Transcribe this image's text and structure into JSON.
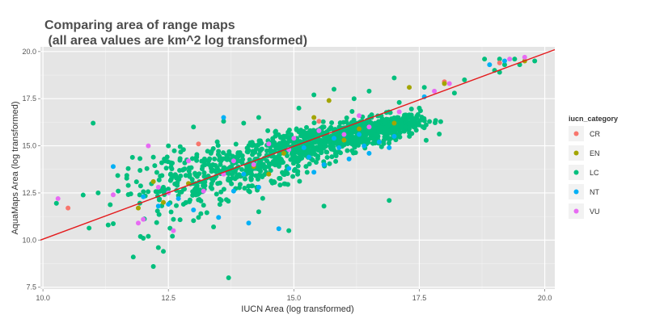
{
  "chart_data": {
    "type": "scatter",
    "title_lines": [
      "Comparing area of range maps",
      " (all area values are km^2 log transformed)"
    ],
    "xlabel": "IUCN Area (log transformed)",
    "ylabel": "AquaMaps Area (log transformed)",
    "xlim": [
      9.95,
      20.2
    ],
    "ylim": [
      7.4,
      20.25
    ],
    "xticks": [
      10.0,
      12.5,
      15.0,
      17.5,
      20.0
    ],
    "xtick_labels": [
      "10.0",
      "12.5",
      "15.0",
      "17.5",
      "20.0"
    ],
    "yticks": [
      7.5,
      10.0,
      12.5,
      15.0,
      17.5,
      20.0
    ],
    "ytick_labels": [
      "7.5",
      "10.0",
      "12.5",
      "15.0",
      "17.5",
      "20.0"
    ],
    "grid": true,
    "legend": {
      "title": "iucn_category",
      "placement": "right",
      "entries": [
        {
          "label": "CR",
          "color": "#F8766D"
        },
        {
          "label": "EN",
          "color": "#A3A500"
        },
        {
          "label": "LC",
          "color": "#00BF7D"
        },
        {
          "label": "NT",
          "color": "#00B0F6"
        },
        {
          "label": "VU",
          "color": "#E76BF3"
        }
      ]
    },
    "fit_line": {
      "color": "#e41a1c",
      "points": [
        [
          9.95,
          10.0
        ],
        [
          20.2,
          20.1
        ]
      ]
    },
    "series": [
      {
        "category": "CR",
        "color": "#F8766D",
        "points": [
          [
            10.5,
            11.7
          ],
          [
            13.1,
            15.1
          ],
          [
            18.0,
            18.4
          ],
          [
            19.1,
            19.4
          ],
          [
            15.5,
            16.3
          ]
        ]
      },
      {
        "category": "EN",
        "color": "#A3A500",
        "points": [
          [
            11.9,
            11.7
          ],
          [
            12.2,
            13.1
          ],
          [
            12.4,
            12.0
          ],
          [
            12.9,
            13.0
          ],
          [
            14.2,
            13.9
          ],
          [
            14.8,
            14.6
          ],
          [
            15.4,
            16.5
          ],
          [
            15.7,
            17.4
          ],
          [
            16.0,
            15.3
          ],
          [
            17.0,
            16.2
          ],
          [
            17.3,
            18.1
          ],
          [
            18.0,
            18.3
          ],
          [
            19.6,
            19.5
          ],
          [
            14.5,
            13.5
          ],
          [
            16.3,
            15.9
          ]
        ]
      },
      {
        "category": "NT",
        "color": "#00B0F6",
        "points": [
          [
            11.4,
            13.9
          ],
          [
            12.0,
            12.3
          ],
          [
            12.3,
            11.8
          ],
          [
            12.5,
            11.9
          ],
          [
            13.0,
            11.6
          ],
          [
            13.5,
            11.2
          ],
          [
            14.1,
            10.9
          ],
          [
            14.7,
            10.6
          ],
          [
            14.3,
            12.8
          ],
          [
            14.9,
            13.8
          ],
          [
            15.3,
            14.4
          ],
          [
            15.6,
            14.0
          ],
          [
            15.9,
            14.9
          ],
          [
            16.1,
            14.3
          ],
          [
            16.4,
            15.0
          ],
          [
            16.5,
            14.6
          ],
          [
            16.7,
            15.2
          ],
          [
            17.0,
            15.5
          ],
          [
            17.6,
            17.6
          ],
          [
            18.9,
            19.3
          ],
          [
            19.2,
            19.5
          ],
          [
            13.6,
            16.5
          ],
          [
            14.0,
            13.5
          ],
          [
            15.2,
            14.9
          ],
          [
            15.8,
            15.4
          ],
          [
            12.7,
            12.2
          ],
          [
            16.3,
            15.6
          ],
          [
            16.9,
            14.9
          ],
          [
            15.4,
            13.6
          ],
          [
            13.8,
            12.6
          ]
        ]
      },
      {
        "category": "VU",
        "color": "#E76BF3",
        "points": [
          [
            10.3,
            12.2
          ],
          [
            11.4,
            12.4
          ],
          [
            11.9,
            10.9
          ],
          [
            12.1,
            15.0
          ],
          [
            12.0,
            11.1
          ],
          [
            12.5,
            12.5
          ],
          [
            12.6,
            10.5
          ],
          [
            13.2,
            12.6
          ],
          [
            13.8,
            14.2
          ],
          [
            14.2,
            14.0
          ],
          [
            14.5,
            15.1
          ],
          [
            15.0,
            15.4
          ],
          [
            15.5,
            15.8
          ],
          [
            16.0,
            15.6
          ],
          [
            16.5,
            16.0
          ],
          [
            17.1,
            16.8
          ],
          [
            17.8,
            17.9
          ],
          [
            18.1,
            18.3
          ],
          [
            19.3,
            19.6
          ],
          [
            19.6,
            19.7
          ],
          [
            12.9,
            14.2
          ],
          [
            13.6,
            13.5
          ],
          [
            14.9,
            14.8
          ],
          [
            16.3,
            16.6
          ],
          [
            12.3,
            12.8
          ]
        ]
      }
    ],
    "lc_clouds": [
      {
        "cx": 16.4,
        "cy": 15.7,
        "sx": 0.55,
        "sy": 0.45,
        "n": 380,
        "cov": 0.55
      },
      {
        "cx": 15.2,
        "cy": 15.0,
        "sx": 0.65,
        "sy": 0.55,
        "n": 340,
        "cov": 0.55
      },
      {
        "cx": 14.0,
        "cy": 13.9,
        "sx": 0.75,
        "sy": 0.8,
        "n": 260,
        "cov": 0.45
      },
      {
        "cx": 12.9,
        "cy": 13.0,
        "sx": 0.7,
        "sy": 0.9,
        "n": 150,
        "cov": 0.35
      },
      {
        "cx": 17.0,
        "cy": 16.1,
        "sx": 0.3,
        "sy": 0.3,
        "n": 120,
        "cov": 0.4
      }
    ],
    "lc_points": [
      [
        11.0,
        16.2
      ],
      [
        11.1,
        12.5
      ],
      [
        11.3,
        10.8
      ],
      [
        11.7,
        12.9
      ],
      [
        11.8,
        9.1
      ],
      [
        12.1,
        10.2
      ],
      [
        12.2,
        14.4
      ],
      [
        12.3,
        9.6
      ],
      [
        12.4,
        9.4
      ],
      [
        12.2,
        8.6
      ],
      [
        12.5,
        15.0
      ],
      [
        12.8,
        14.8
      ],
      [
        13.0,
        16.0
      ],
      [
        13.6,
        16.3
      ],
      [
        14.0,
        16.2
      ],
      [
        14.3,
        16.5
      ],
      [
        15.1,
        17.0
      ],
      [
        15.4,
        17.7
      ],
      [
        15.8,
        18.0
      ],
      [
        16.2,
        17.5
      ],
      [
        17.0,
        18.6
      ],
      [
        17.5,
        17.0
      ],
      [
        18.2,
        17.8
      ],
      [
        18.4,
        18.5
      ],
      [
        18.8,
        19.6
      ],
      [
        19.0,
        19.0
      ],
      [
        19.1,
        19.6
      ],
      [
        19.2,
        19.3
      ],
      [
        19.4,
        19.6
      ],
      [
        19.5,
        19.3
      ],
      [
        19.8,
        19.5
      ],
      [
        19.1,
        18.9
      ],
      [
        13.7,
        8.0
      ],
      [
        14.9,
        10.5
      ],
      [
        15.6,
        11.8
      ],
      [
        16.9,
        12.1
      ],
      [
        16.5,
        17.9
      ],
      [
        15.6,
        16.0
      ],
      [
        17.3,
        15.9
      ],
      [
        17.2,
        16.5
      ],
      [
        16.8,
        16.2
      ],
      [
        17.3,
        15.7
      ],
      [
        17.1,
        17.3
      ],
      [
        17.6,
        18.1
      ],
      [
        12.0,
        10.1
      ],
      [
        11.5,
        12.6
      ],
      [
        12.6,
        11.1
      ],
      [
        13.4,
        10.7
      ],
      [
        14.3,
        11.5
      ],
      [
        13.1,
        11.2
      ],
      [
        12.8,
        11.9
      ],
      [
        12.4,
        12.8
      ]
    ]
  }
}
